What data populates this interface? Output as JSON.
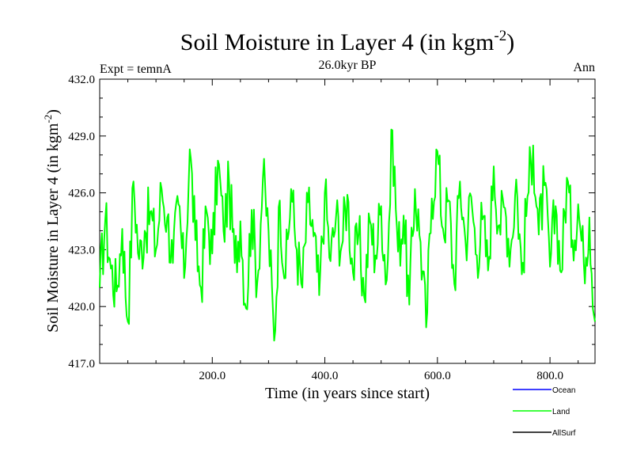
{
  "chart_data": {
    "type": "line",
    "title_main": "Soil Moisture in Layer 4 (in kgm",
    "title_sup": "-2",
    "title_close": ")",
    "subtitle": "26.0kyr BP",
    "left_label": "Expt = temnA",
    "right_label": "Ann",
    "ylabel_main": "Soil Moisture in Layer 4 (in kgm",
    "ylabel_sup": "-2",
    "ylabel_close": ")",
    "xlabel": "Time (in years since start)",
    "xlim": [
      0,
      880
    ],
    "ylim": [
      417.0,
      432.0
    ],
    "xticks": [
      200,
      400,
      600,
      800
    ],
    "xtick_labels": [
      "200.0",
      "400.0",
      "600.0",
      "800.0"
    ],
    "yticks": [
      417,
      420,
      423,
      426,
      429,
      432
    ],
    "ytick_labels": [
      "417.0",
      "420.0",
      "423.0",
      "426.0",
      "429.0",
      "432.0"
    ],
    "legend": [
      {
        "name": "Ocean",
        "color": "#0000ff"
      },
      {
        "name": "Land",
        "color": "#00ff00"
      },
      {
        "name": "AllSurf",
        "color": "#000000"
      }
    ],
    "series": [
      {
        "name": "Land",
        "color": "#00ff00",
        "x": [
          0,
          10,
          20,
          30,
          40,
          50,
          60,
          70,
          80,
          90,
          100,
          110,
          120,
          130,
          140,
          150,
          160,
          170,
          180,
          190,
          200,
          210,
          220,
          230,
          240,
          250,
          260,
          270,
          280,
          290,
          300,
          310,
          320,
          330,
          340,
          350,
          360,
          370,
          380,
          390,
          400,
          410,
          420,
          430,
          440,
          450,
          460,
          470,
          480,
          490,
          500,
          510,
          520,
          530,
          540,
          550,
          560,
          570,
          580,
          590,
          600,
          610,
          620,
          630,
          640,
          650,
          660,
          670,
          680,
          690,
          700,
          710,
          720,
          730,
          740,
          750,
          760,
          770,
          780,
          790,
          800,
          810,
          820,
          830,
          840,
          850,
          860,
          870,
          880
        ],
        "values": [
          421.0,
          424.6,
          422.0,
          420.8,
          424.1,
          419.2,
          426.6,
          422.5,
          424.0,
          425.0,
          423.0,
          426.2,
          424.7,
          422.3,
          425.4,
          421.5,
          428.3,
          423.5,
          421.0,
          425.0,
          422.8,
          427.7,
          424.0,
          426.5,
          422.3,
          424.5,
          419.9,
          425.1,
          421.3,
          426.8,
          424.0,
          418.2,
          425.6,
          421.5,
          426.2,
          423.0,
          421.0,
          425.5,
          423.7,
          420.6,
          426.0,
          422.4,
          424.8,
          423.2,
          425.9,
          421.8,
          423.8,
          420.5,
          424.5,
          422.7,
          425.3,
          421.4,
          429.3,
          422.9,
          424.8,
          420.1,
          426.2,
          423.4,
          418.9,
          425.7,
          428.2,
          424.1,
          425.6,
          421.2,
          426.6,
          423.4,
          425.8,
          422.7,
          424.6,
          421.9,
          427.4,
          424.3,
          425.2,
          423.0,
          426.7,
          421.7,
          425.8,
          428.5,
          423.8,
          426.4,
          422.1,
          425.3,
          421.8,
          426.8,
          423.5,
          425.4,
          422.3,
          424.7,
          419.2
        ]
      }
    ]
  }
}
